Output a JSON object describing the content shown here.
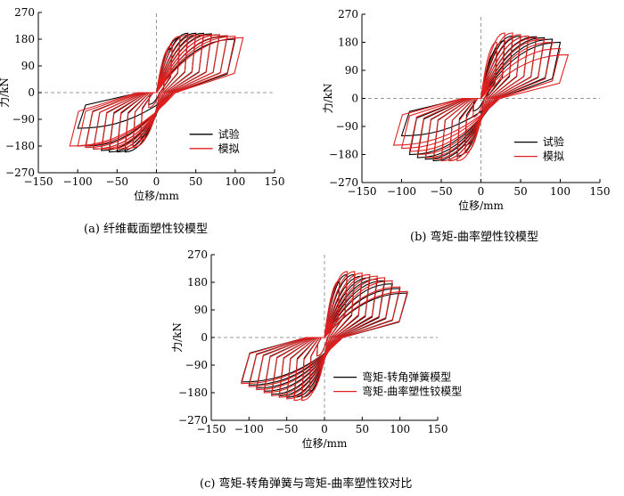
{
  "colors": {
    "test": "#000000",
    "sim": "#e02020",
    "zero": "#9a9a9a"
  },
  "panels": [
    {
      "id": "a",
      "caption": "(a) 纤维截面塑性铰模型"
    },
    {
      "id": "b",
      "caption": "(b) 弯矩-曲率塑性铰模型"
    },
    {
      "id": "c",
      "caption": "(c) 弯矩-转角弹簧与弯矩-曲率塑性铰对比"
    }
  ],
  "chart_data": [
    {
      "type": "line",
      "panel": "a",
      "xlabel": "位移/mm",
      "ylabel": "力/kN",
      "xlim": [
        -150,
        150
      ],
      "ylim": [
        -270,
        270
      ],
      "xticks": [
        -150,
        -100,
        -50,
        0,
        50,
        100,
        150
      ],
      "yticks": [
        -270,
        -180,
        -90,
        0,
        90,
        180,
        270
      ],
      "legend_position": "lower-right",
      "grid": false,
      "series": [
        {
          "name": "试验",
          "color": "#000000",
          "peaks": [
            [
              10,
              40
            ],
            [
              20,
              150
            ],
            [
              30,
              185
            ],
            [
              40,
              200
            ],
            [
              50,
              200
            ],
            [
              60,
              200
            ],
            [
              70,
              198
            ],
            [
              80,
              195
            ],
            [
              90,
              190
            ],
            [
              100,
              180
            ],
            [
              110,
              160
            ]
          ],
          "valleys": [
            [
              -10,
              -40
            ],
            [
              -20,
              -150
            ],
            [
              -30,
              -185
            ],
            [
              -40,
              -200
            ],
            [
              -50,
              -200
            ],
            [
              -60,
              -200
            ],
            [
              -70,
              -195
            ],
            [
              -80,
              -190
            ],
            [
              -90,
              -180
            ],
            [
              -100,
              -120
            ]
          ]
        },
        {
          "name": "模拟",
          "color": "#e02020",
          "peaks": [
            [
              10,
              50
            ],
            [
              20,
              160
            ],
            [
              30,
              190
            ],
            [
              40,
              195
            ],
            [
              50,
              195
            ],
            [
              60,
              195
            ],
            [
              70,
              195
            ],
            [
              80,
              195
            ],
            [
              90,
              192
            ],
            [
              100,
              190
            ],
            [
              110,
              185
            ]
          ],
          "valleys": [
            [
              -10,
              -50
            ],
            [
              -20,
              -160
            ],
            [
              -30,
              -185
            ],
            [
              -40,
              -190
            ],
            [
              -50,
              -190
            ],
            [
              -60,
              -190
            ],
            [
              -70,
              -190
            ],
            [
              -80,
              -190
            ],
            [
              -90,
              -185
            ],
            [
              -100,
              -180
            ],
            [
              -110,
              -180
            ]
          ]
        }
      ]
    },
    {
      "type": "line",
      "panel": "b",
      "xlabel": "位移/mm",
      "ylabel": "力/kN",
      "xlim": [
        -150,
        150
      ],
      "ylim": [
        -270,
        270
      ],
      "xticks": [
        -150,
        -100,
        -50,
        0,
        50,
        100,
        150
      ],
      "yticks": [
        -270,
        -180,
        -90,
        0,
        90,
        180,
        270
      ],
      "legend_position": "lower-right",
      "grid": false,
      "series": [
        {
          "name": "试验",
          "color": "#000000",
          "peaks": [
            [
              10,
              40
            ],
            [
              20,
              150
            ],
            [
              30,
              185
            ],
            [
              40,
              200
            ],
            [
              50,
              200
            ],
            [
              60,
              200
            ],
            [
              70,
              198
            ],
            [
              80,
              195
            ],
            [
              90,
              190
            ],
            [
              100,
              180
            ],
            [
              110,
              160
            ]
          ],
          "valleys": [
            [
              -10,
              -40
            ],
            [
              -20,
              -150
            ],
            [
              -30,
              -185
            ],
            [
              -40,
              -200
            ],
            [
              -50,
              -200
            ],
            [
              -60,
              -200
            ],
            [
              -70,
              -195
            ],
            [
              -80,
              -190
            ],
            [
              -90,
              -180
            ],
            [
              -100,
              -120
            ]
          ]
        },
        {
          "name": "模拟",
          "color": "#e02020",
          "peaks": [
            [
              10,
              60
            ],
            [
              20,
              180
            ],
            [
              30,
              210
            ],
            [
              40,
              210
            ],
            [
              50,
              205
            ],
            [
              60,
              200
            ],
            [
              70,
              195
            ],
            [
              80,
              190
            ],
            [
              90,
              180
            ],
            [
              100,
              160
            ],
            [
              110,
              140
            ]
          ],
          "valleys": [
            [
              -10,
              -60
            ],
            [
              -20,
              -175
            ],
            [
              -30,
              -200
            ],
            [
              -40,
              -200
            ],
            [
              -50,
              -200
            ],
            [
              -60,
              -195
            ],
            [
              -70,
              -190
            ],
            [
              -80,
              -180
            ],
            [
              -90,
              -170
            ],
            [
              -100,
              -160
            ],
            [
              -110,
              -150
            ]
          ]
        }
      ]
    },
    {
      "type": "line",
      "panel": "c",
      "xlabel": "位移/mm",
      "ylabel": "力/kN",
      "xlim": [
        -150,
        150
      ],
      "ylim": [
        -270,
        270
      ],
      "xticks": [
        -150,
        -100,
        -50,
        0,
        50,
        100,
        150
      ],
      "yticks": [
        -270,
        -180,
        -90,
        0,
        90,
        180,
        270
      ],
      "legend_position": "lower-right",
      "grid": false,
      "series": [
        {
          "name": "弯矩-转角弹簧模型",
          "color": "#000000",
          "peaks": [
            [
              10,
              60
            ],
            [
              20,
              180
            ],
            [
              30,
              205
            ],
            [
              40,
              205
            ],
            [
              50,
              200
            ],
            [
              60,
              195
            ],
            [
              70,
              190
            ],
            [
              80,
              185
            ],
            [
              90,
              175
            ],
            [
              100,
              160
            ],
            [
              110,
              145
            ]
          ],
          "valleys": [
            [
              -10,
              -60
            ],
            [
              -20,
              -175
            ],
            [
              -30,
              -195
            ],
            [
              -40,
              -195
            ],
            [
              -50,
              -195
            ],
            [
              -60,
              -190
            ],
            [
              -70,
              -185
            ],
            [
              -80,
              -175
            ],
            [
              -90,
              -165
            ],
            [
              -100,
              -155
            ],
            [
              -110,
              -145
            ]
          ]
        },
        {
          "name": "弯矩-曲率塑性铰模型",
          "color": "#e02020",
          "peaks": [
            [
              10,
              60
            ],
            [
              20,
              185
            ],
            [
              30,
              215
            ],
            [
              40,
              215
            ],
            [
              50,
              210
            ],
            [
              60,
              205
            ],
            [
              70,
              200
            ],
            [
              80,
              195
            ],
            [
              90,
              185
            ],
            [
              100,
              165
            ],
            [
              110,
              150
            ]
          ],
          "valleys": [
            [
              -10,
              -60
            ],
            [
              -20,
              -180
            ],
            [
              -30,
              -205
            ],
            [
              -40,
              -205
            ],
            [
              -50,
              -200
            ],
            [
              -60,
              -195
            ],
            [
              -70,
              -190
            ],
            [
              -80,
              -180
            ],
            [
              -90,
              -170
            ],
            [
              -100,
              -160
            ],
            [
              -110,
              -150
            ]
          ]
        }
      ]
    }
  ]
}
